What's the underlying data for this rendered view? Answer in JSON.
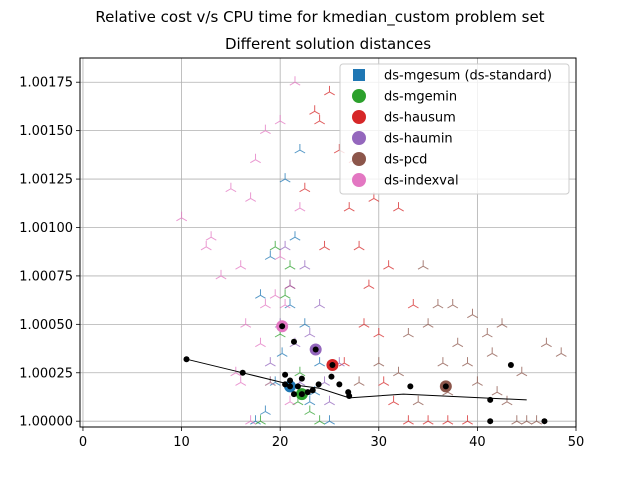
{
  "chart_data": {
    "type": "scatter",
    "suptitle": "Relative cost v/s CPU time for kmedian_custom problem set",
    "title": "Different solution distances",
    "xlabel": "",
    "ylabel": "",
    "xlim": [
      -0.3,
      50
    ],
    "ylim": [
      0.99997,
      1.001875
    ],
    "xticks": [
      0,
      10,
      20,
      30,
      40,
      50
    ],
    "xtick_labels": [
      "0",
      "10",
      "20",
      "30",
      "40",
      "50"
    ],
    "yticks": [
      1.0,
      1.00025,
      1.0005,
      1.00075,
      1.001,
      1.00125,
      1.0015,
      1.00175
    ],
    "ytick_labels": [
      "1.00000",
      "1.00025",
      "1.00050",
      "1.00075",
      "1.00100",
      "1.00125",
      "1.00150",
      "1.00175"
    ],
    "grid": true,
    "legend_position": "top-right",
    "legend": [
      {
        "label": "ds-mgesum (ds-standard)",
        "color": "#1f77b4",
        "marker": "square"
      },
      {
        "label": "ds-mgemin",
        "color": "#2ca02c",
        "marker": "circle"
      },
      {
        "label": "ds-hausum",
        "color": "#d62728",
        "marker": "circle"
      },
      {
        "label": "ds-haumin",
        "color": "#9467bd",
        "marker": "circle"
      },
      {
        "label": "ds-pcd",
        "color": "#8c564b",
        "marker": "circle"
      },
      {
        "label": "ds-indexval",
        "color": "#e377c2",
        "marker": "circle"
      }
    ],
    "series": [
      {
        "name": "ds-mgesum (ds-standard)",
        "color": "#1f77b4",
        "mean": [
          21.0,
          1.00018
        ],
        "points": [
          [
            17.5,
            1.0
          ],
          [
            18.5,
            1.00005
          ],
          [
            19.5,
            1.0002
          ],
          [
            20.2,
            1.00035
          ],
          [
            21.0,
            1.0006
          ],
          [
            21.5,
            1.00095
          ],
          [
            22.0,
            1.0014
          ],
          [
            23.0,
            1.0001
          ],
          [
            24.0,
            1.0003
          ],
          [
            25.0,
            1.0
          ],
          [
            19.0,
            1.00085
          ],
          [
            20.5,
            1.00125
          ],
          [
            22.5,
            1.0005
          ],
          [
            23.5,
            1.00015
          ],
          [
            18.0,
            1.00065
          ]
        ]
      },
      {
        "name": "ds-mgemin",
        "color": "#2ca02c",
        "mean": [
          22.2,
          1.00014
        ],
        "points": [
          [
            18.0,
            1.0
          ],
          [
            19.0,
            1.0002
          ],
          [
            20.0,
            1.00045
          ],
          [
            21.0,
            1.0008
          ],
          [
            22.0,
            1.00025
          ],
          [
            23.0,
            1.00005
          ],
          [
            20.5,
            1.00065
          ],
          [
            21.8,
            1.0001
          ],
          [
            24.0,
            1.0
          ],
          [
            19.5,
            1.0009
          ]
        ]
      },
      {
        "name": "ds-hausum",
        "color": "#d62728",
        "mean": [
          25.3,
          1.00029
        ],
        "points": [
          [
            21.0,
            1.0007
          ],
          [
            22.5,
            1.0012
          ],
          [
            24.0,
            1.00155
          ],
          [
            25.0,
            1.0017
          ],
          [
            26.0,
            1.0014
          ],
          [
            27.0,
            1.0011
          ],
          [
            28.0,
            1.0009
          ],
          [
            29.0,
            1.0007
          ],
          [
            30.0,
            1.00045
          ],
          [
            31.0,
            1.0008
          ],
          [
            32.0,
            1.0011
          ],
          [
            33.0,
            1.0
          ],
          [
            35.0,
            1.0
          ],
          [
            37.0,
            1.0
          ],
          [
            39.0,
            1.0
          ],
          [
            26.5,
            1.0003
          ],
          [
            28.5,
            1.0005
          ],
          [
            30.5,
            1.0002
          ],
          [
            33.5,
            1.0006
          ],
          [
            24.5,
            1.0009
          ],
          [
            27.5,
            1.00135
          ],
          [
            23.5,
            1.0016
          ],
          [
            29.5,
            1.00115
          ],
          [
            31.5,
            1.0001
          ]
        ]
      },
      {
        "name": "ds-haumin",
        "color": "#9467bd",
        "mean": [
          23.6,
          1.00037
        ],
        "points": [
          [
            19.0,
            1.0003
          ],
          [
            20.0,
            1.0005
          ],
          [
            21.0,
            1.0007
          ],
          [
            22.0,
            1.0002
          ],
          [
            23.0,
            1.00045
          ],
          [
            24.0,
            1.0006
          ],
          [
            25.0,
            1.0001
          ],
          [
            26.0,
            1.0003
          ],
          [
            21.5,
            1.0004
          ],
          [
            20.5,
            1.0009
          ],
          [
            24.5,
            1.0002
          ],
          [
            22.5,
            1.0008
          ]
        ]
      },
      {
        "name": "ds-pcd",
        "color": "#8c564b",
        "mean": [
          36.8,
          1.00018
        ],
        "points": [
          [
            28.0,
            1.0002
          ],
          [
            30.0,
            1.0003
          ],
          [
            32.0,
            1.00025
          ],
          [
            33.0,
            1.00045
          ],
          [
            34.0,
            1.0001
          ],
          [
            35.0,
            1.0005
          ],
          [
            36.0,
            1.0006
          ],
          [
            37.0,
            1.00015
          ],
          [
            38.0,
            1.0004
          ],
          [
            39.0,
            1.0003
          ],
          [
            40.0,
            1.0002
          ],
          [
            41.0,
            1.00045
          ],
          [
            42.0,
            1.00015
          ],
          [
            43.0,
            1.0001
          ],
          [
            44.0,
            1.0
          ],
          [
            45.0,
            1.0
          ],
          [
            46.0,
            1.0
          ],
          [
            39.5,
            1.00055
          ],
          [
            36.5,
            1.0003
          ],
          [
            41.5,
            1.00035
          ],
          [
            47.0,
            1.0004
          ],
          [
            48.5,
            1.00035
          ],
          [
            44.5,
            1.00025
          ],
          [
            34.5,
            1.0008
          ],
          [
            37.5,
            1.0006
          ],
          [
            42.5,
            1.0005
          ]
        ]
      },
      {
        "name": "ds-indexval",
        "color": "#e377c2",
        "mean": [
          20.2,
          1.00049
        ],
        "points": [
          [
            10.0,
            1.00105
          ],
          [
            12.5,
            1.0009
          ],
          [
            14.0,
            1.00075
          ],
          [
            15.0,
            1.0012
          ],
          [
            15.5,
            1.00025
          ],
          [
            16.0,
            1.0008
          ],
          [
            16.5,
            1.0005
          ],
          [
            17.0,
            1.0
          ],
          [
            17.5,
            1.00135
          ],
          [
            18.0,
            1.0004
          ],
          [
            18.5,
            1.0015
          ],
          [
            19.0,
            1.0002
          ],
          [
            19.5,
            1.00065
          ],
          [
            20.0,
            1.00155
          ],
          [
            20.5,
            1.0006
          ],
          [
            21.0,
            1.0001
          ],
          [
            21.5,
            1.00175
          ],
          [
            22.0,
            1.0011
          ],
          [
            17.0,
            1.00115
          ],
          [
            13.0,
            1.00095
          ],
          [
            16.0,
            1.0002
          ],
          [
            18.5,
            1.0006
          ],
          [
            20.0,
            1.00085
          ]
        ]
      }
    ],
    "instance_points": [
      [
        10.5,
        1.00032
      ],
      [
        16.2,
        1.00025
      ],
      [
        20.5,
        1.00019
      ],
      [
        21.0,
        1.00021
      ],
      [
        21.4,
        1.00041
      ],
      [
        21.8,
        1.00018
      ],
      [
        22.2,
        1.00022
      ],
      [
        22.8,
        1.00015
      ],
      [
        23.3,
        1.00016
      ],
      [
        23.9,
        1.00019
      ],
      [
        25.2,
        1.00023
      ],
      [
        26.0,
        1.00019
      ],
      [
        26.9,
        1.00015
      ],
      [
        27.0,
        1.00013
      ],
      [
        33.2,
        1.00018
      ],
      [
        41.3,
        1.00011
      ],
      [
        41.3,
        1.0
      ],
      [
        43.4,
        1.00029
      ],
      [
        46.8,
        1.0
      ],
      [
        21.4,
        1.00014
      ],
      [
        20.5,
        1.00024
      ]
    ],
    "trend_line": [
      [
        10.5,
        1.00032
      ],
      [
        16.2,
        1.00025
      ],
      [
        21.0,
        1.00019
      ],
      [
        24.0,
        1.00017
      ],
      [
        27.0,
        1.00012
      ],
      [
        32.5,
        1.00014
      ],
      [
        45.0,
        1.00011
      ]
    ]
  }
}
